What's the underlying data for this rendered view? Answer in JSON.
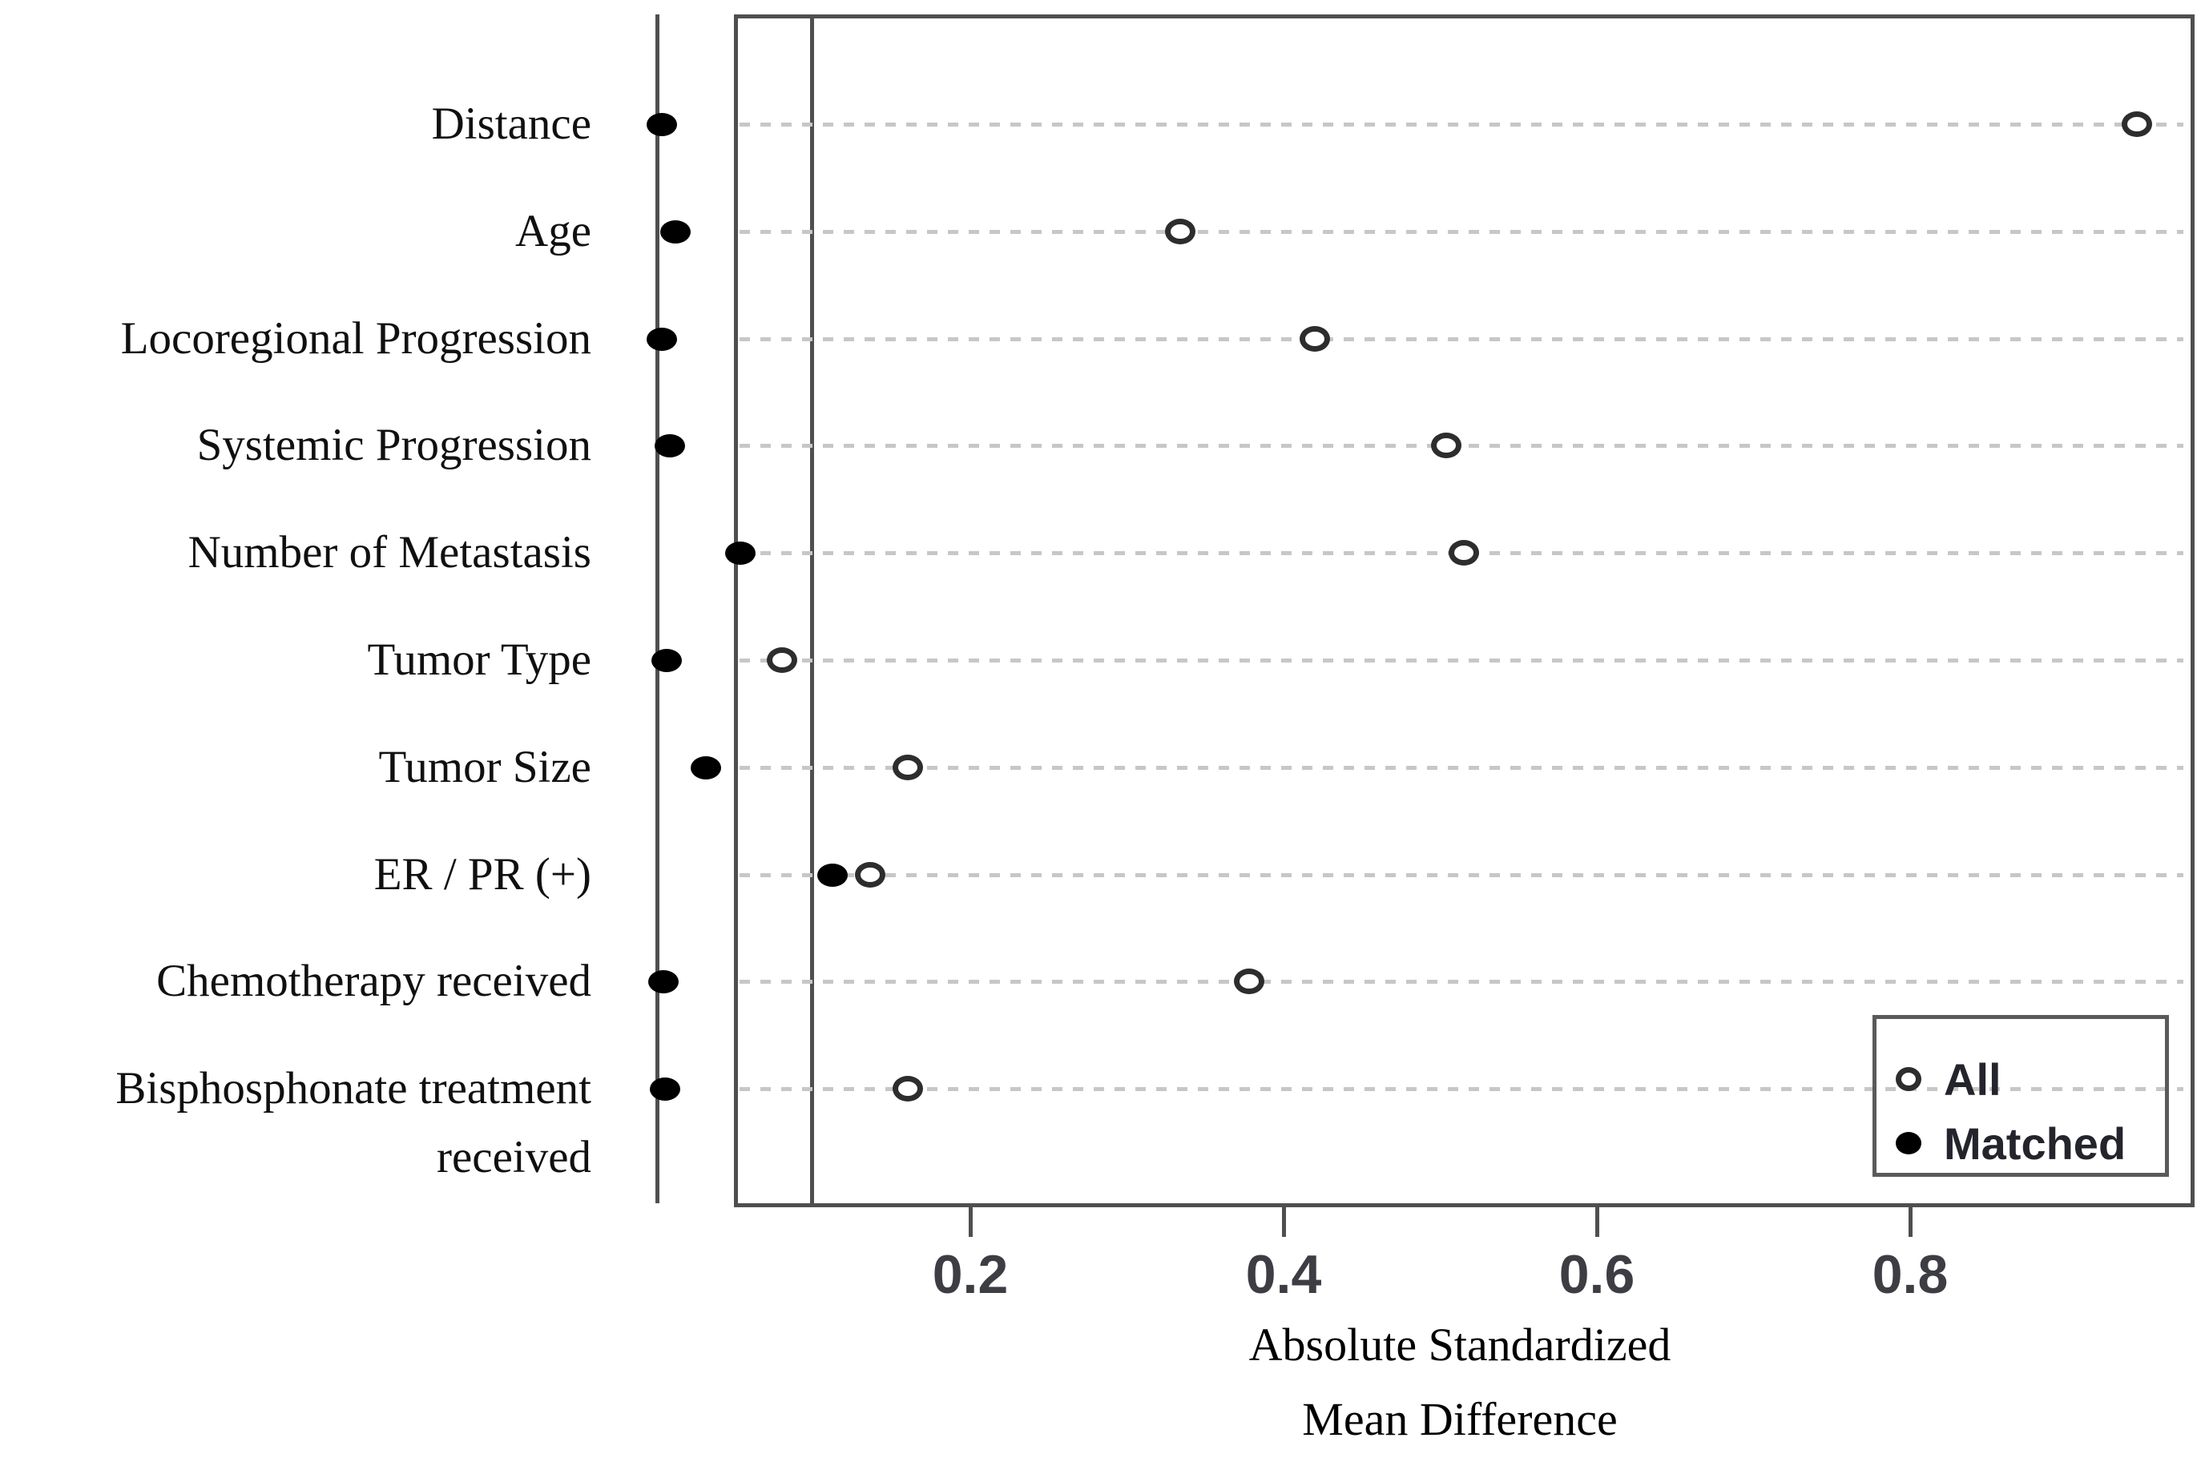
{
  "figure": {
    "axis_title_line1": "Absolute Standardized",
    "axis_title_line2": "Mean Difference",
    "legend": {
      "all_label": "All",
      "matched_label": "Matched",
      "all_marker": "open-circle-icon",
      "matched_marker": "filled-circle-icon"
    }
  },
  "colors": {
    "axis_line": "#4f4f4f",
    "gridline": "#c7c7c7",
    "open_marker_ring": "#2d2d2d",
    "filled_marker": "#000000",
    "tick_text": "#3d3d44",
    "label_text": "#101010"
  },
  "chart_data": {
    "type": "scatter",
    "subtype": "covariate-balance-dot-plot",
    "title": "",
    "xlabel": "Absolute Standardized Mean Difference",
    "ylabel": "",
    "x_ticks": [
      0.2,
      0.4,
      0.6,
      0.8
    ],
    "xlim": [
      0,
      0.98
    ],
    "reference_lines_x": [
      0,
      0.1
    ],
    "grid": "dotted horizontal per category",
    "legend_position": "bottom-right",
    "categories": [
      "Distance",
      "Age",
      "Locoregional Progression",
      "Systemic Progression",
      "Number of Metastasis",
      "Tumor Type",
      "Tumor Size",
      "ER / PR (+)",
      "Chemotherapy received",
      "Bisphosphonate treatment received"
    ],
    "category_display_lines": [
      [
        "Distance"
      ],
      [
        "Age"
      ],
      [
        "Locoregional Progression"
      ],
      [
        "Systemic Progression"
      ],
      [
        "Number of Metastasis"
      ],
      [
        "Tumor Type"
      ],
      [
        "Tumor Size"
      ],
      [
        "ER / PR (+)"
      ],
      [
        "Chemotherapy received"
      ],
      [
        "Bisphosphonate treatment",
        "received"
      ]
    ],
    "series": [
      {
        "name": "All",
        "marker": "open-circle",
        "values": [
          0.945,
          0.334,
          0.42,
          0.504,
          0.515,
          0.08,
          0.16,
          0.136,
          0.378,
          0.16
        ]
      },
      {
        "name": "Matched",
        "marker": "filled-circle",
        "values": [
          0.003,
          0.012,
          0.003,
          0.008,
          0.053,
          0.006,
          0.031,
          0.112,
          0.004,
          0.005
        ]
      }
    ]
  }
}
